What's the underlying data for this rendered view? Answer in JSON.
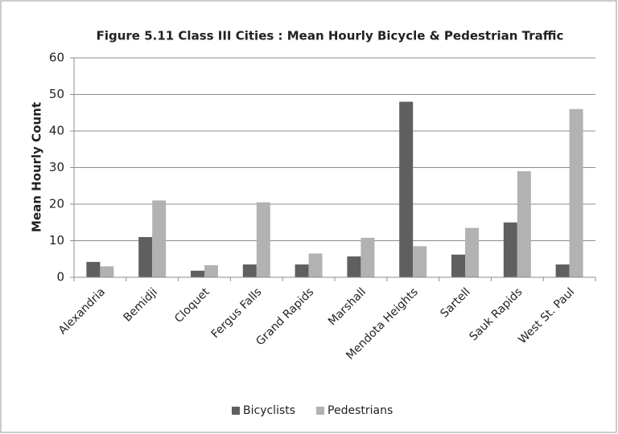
{
  "chart_data": {
    "type": "bar",
    "title": "Figure 5.11 Class III Cities : Mean Hourly Bicycle & Pedestrian Traffic",
    "y_label": "Mean Hourly Count",
    "categories": [
      "Alexandria",
      "Bemidji",
      "Cloquet",
      "Fergus Falls",
      "Grand Rapids",
      "Marshall",
      "Mendota Heights",
      "Sartell",
      "Sauk Rapids",
      "West St. Paul"
    ],
    "series": [
      {
        "name": "Bicyclists",
        "color": "#5f5f5f",
        "values": [
          4.2,
          11,
          1.8,
          3.5,
          3.5,
          5.7,
          48,
          6.2,
          15,
          3.5
        ]
      },
      {
        "name": "Pedestrians",
        "color": "#b2b2b2",
        "values": [
          3,
          21,
          3.3,
          20.5,
          6.5,
          10.8,
          8.5,
          13.5,
          29,
          46
        ]
      }
    ],
    "ylim": [
      0,
      60
    ],
    "yticks": [
      0,
      10,
      20,
      30,
      40,
      50,
      60
    ],
    "grid": true,
    "legend": "bottom"
  }
}
